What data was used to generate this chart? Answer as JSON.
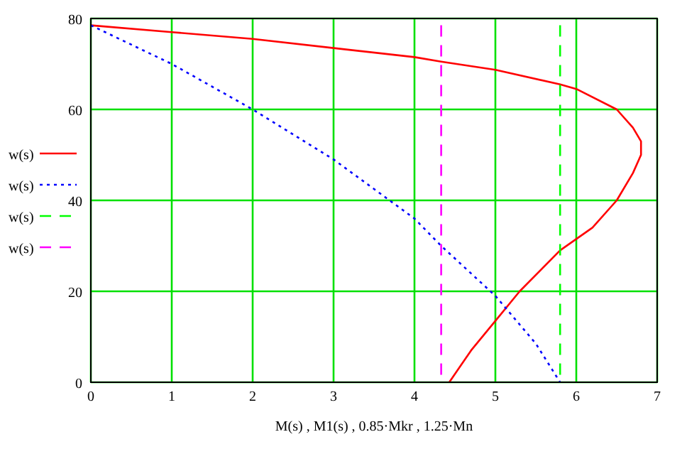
{
  "chart_data": {
    "type": "line",
    "xlabel": "M(s) , M1(s) , 0.85·Mkr , 1.25·Mn",
    "xlim": [
      0,
      7
    ],
    "xticks": [
      0,
      1,
      2,
      3,
      4,
      5,
      6,
      7
    ],
    "ylim": [
      0,
      80
    ],
    "yticks": [
      0,
      20,
      40,
      60,
      80
    ],
    "grid": true,
    "legend": "left",
    "series": [
      {
        "name": "w(s)",
        "color": "#ff0000",
        "line_style": "solid",
        "x": [
          0,
          1,
          2,
          3,
          4,
          4.33,
          5,
          5.8,
          6,
          6.5,
          6.7,
          6.8,
          6.8,
          6.7,
          6.5,
          6.2,
          6,
          5.8,
          5.3,
          5,
          4.7,
          4.43
        ],
        "values": [
          78.5,
          77,
          75.5,
          73.5,
          71.5,
          70.5,
          68.7,
          65.5,
          64.5,
          60,
          56,
          53,
          50,
          46,
          40,
          34,
          31.5,
          29,
          20,
          13.5,
          7,
          0
        ]
      },
      {
        "name": "w(s)",
        "color": "#0000ff",
        "line_style": "dotted",
        "x": [
          0,
          1,
          2,
          3,
          3.5,
          4,
          4.33,
          5,
          5.5,
          5.8
        ],
        "values": [
          78.5,
          70,
          60,
          49,
          42.5,
          36,
          30,
          19,
          8.5,
          0
        ]
      },
      {
        "name": "w(s)",
        "color": "#00ff00",
        "line_style": "dashed",
        "x": [
          5.8,
          5.8
        ],
        "values": [
          78.5,
          0
        ]
      },
      {
        "name": "w(s)",
        "color": "#ff00ff",
        "line_style": "dashed",
        "x": [
          4.33,
          4.33
        ],
        "values": [
          78.5,
          0
        ]
      }
    ]
  }
}
